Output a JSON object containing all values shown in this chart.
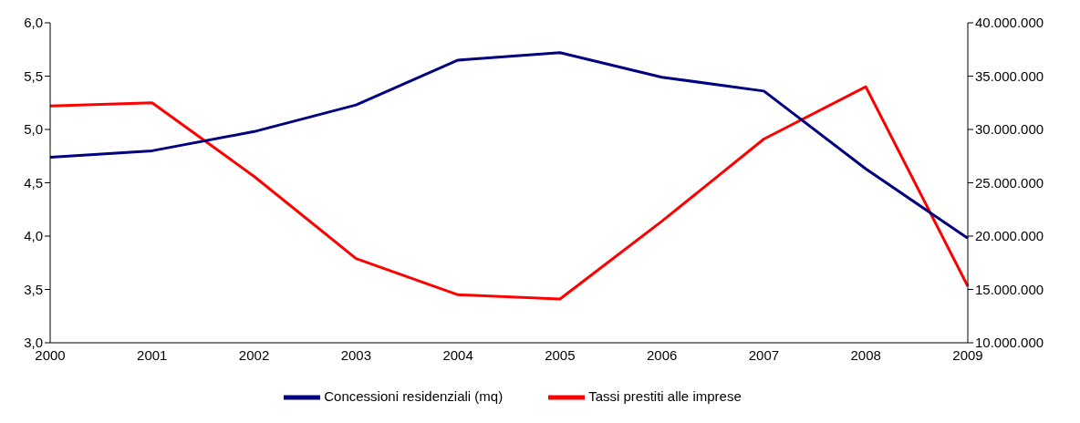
{
  "chart_data": {
    "type": "line",
    "categories": [
      "2000",
      "2001",
      "2002",
      "2003",
      "2004",
      "2005",
      "2006",
      "2007",
      "2008",
      "2009"
    ],
    "series": [
      {
        "name": "Tassi prestiti alle imprese",
        "color": "#ff0000",
        "values": [
          5.22,
          5.25,
          4.56,
          3.79,
          3.45,
          3.41,
          4.14,
          4.91,
          5.4,
          3.53
        ]
      },
      {
        "name": "Concessioni residenziali (mq)",
        "color": "#000080",
        "axis": "y2",
        "values": [
          27400000,
          28000000,
          29800000,
          32300000,
          36500000,
          37200000,
          34900000,
          33600000,
          26300000,
          19800000
        ]
      }
    ],
    "ylim": [
      3,
      6
    ],
    "yticks": [
      {
        "value": 3,
        "label": "3,0"
      },
      {
        "value": 3.5,
        "label": "3,5"
      },
      {
        "value": 4,
        "label": "4,0"
      },
      {
        "value": 4.5,
        "label": "4,5"
      },
      {
        "value": 5,
        "label": "5,0"
      },
      {
        "value": 5.5,
        "label": "5,5"
      },
      {
        "value": 6,
        "label": "6,0"
      }
    ],
    "y2lim": [
      10000000,
      40000000
    ],
    "y2ticks": [
      {
        "value": 10000000,
        "label": "10.000.000"
      },
      {
        "value": 15000000,
        "label": "15.000.000"
      },
      {
        "value": 20000000,
        "label": "20.000.000"
      },
      {
        "value": 25000000,
        "label": "25.000.000"
      },
      {
        "value": 30000000,
        "label": "30.000.000"
      },
      {
        "value": 35000000,
        "label": "35.000.000"
      },
      {
        "value": 40000000,
        "label": "40.000.000"
      }
    ],
    "grid": false,
    "legend": "bottom",
    "marker": "none",
    "line_style": "solid"
  }
}
